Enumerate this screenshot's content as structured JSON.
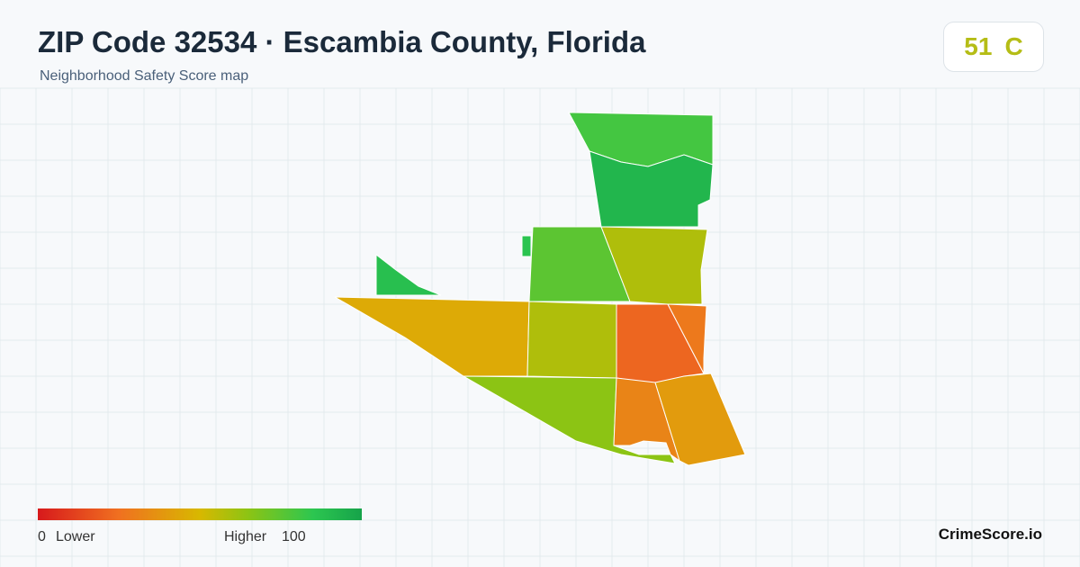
{
  "header": {
    "title": "ZIP Code 32534 · Escambia County, Florida",
    "subtitle": "Neighborhood Safety Score map"
  },
  "score": {
    "value": 51,
    "grade": "C"
  },
  "regions": [
    {
      "score": 80
    },
    {
      "score": 92
    },
    {
      "score": 88
    },
    {
      "score": 86
    },
    {
      "score": 75
    },
    {
      "score": 58
    },
    {
      "score": 45
    },
    {
      "score": 58
    },
    {
      "score": 22
    },
    {
      "score": 28
    },
    {
      "score": 65
    },
    {
      "score": 32
    },
    {
      "score": 40
    }
  ],
  "legend": {
    "min": 0,
    "min_label": "Lower",
    "max_label": "Higher",
    "max": 100
  },
  "brand": "CrimeScore.io"
}
